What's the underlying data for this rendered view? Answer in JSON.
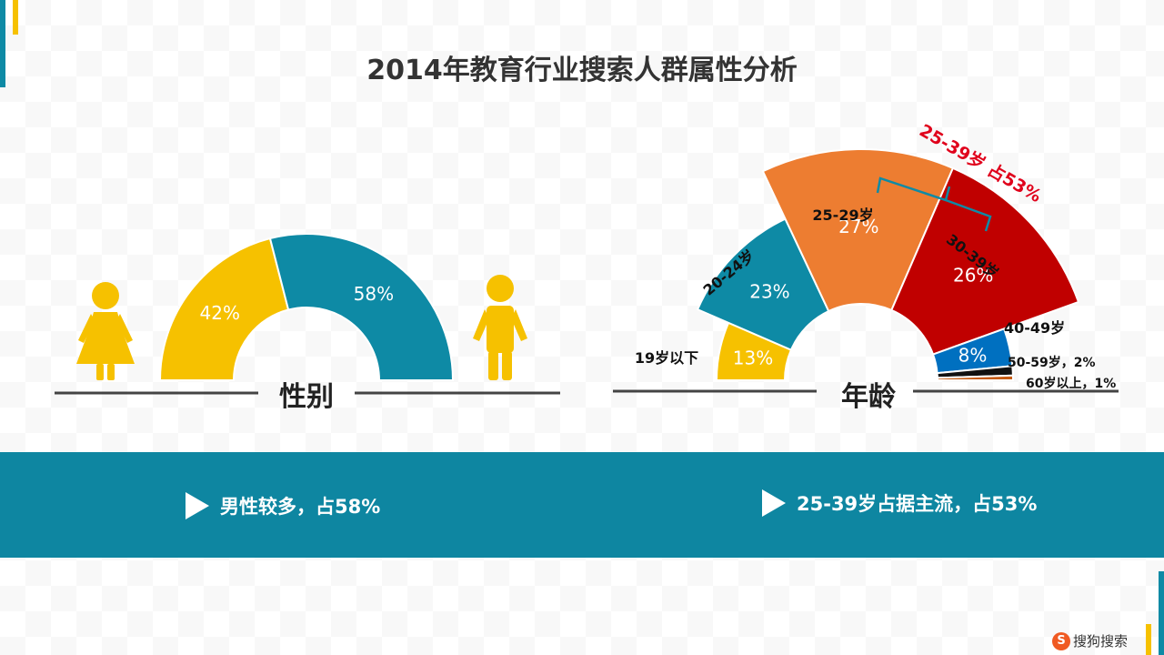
{
  "title": "2014年教育行业搜索人群属性分析",
  "colors": {
    "teal": "#0e8aa5",
    "gold": "#f6c100",
    "orange": "#ed7d31",
    "red": "#c00000",
    "blue": "#0070c0",
    "black": "#111111",
    "brown": "#c55a11",
    "highlight": "#e0001b"
  },
  "chart_data": [
    {
      "type": "pie",
      "shape": "half-donut",
      "title": "性别",
      "series": [
        {
          "label": "42%",
          "value": 42,
          "color": "#f6c100",
          "icon": "female-icon"
        },
        {
          "label": "58%",
          "value": 58,
          "color": "#0e8aa5",
          "icon": "male-icon"
        }
      ]
    },
    {
      "type": "pie",
      "shape": "half-donut",
      "title": "年龄",
      "series": [
        {
          "name": "19岁以下",
          "label": "13%",
          "value": 13,
          "color": "#f6c100"
        },
        {
          "name": "20-24岁",
          "label": "23%",
          "value": 23,
          "color": "#0e8aa5"
        },
        {
          "name": "25-29岁",
          "label": "27%",
          "value": 27,
          "color": "#ed7d31"
        },
        {
          "name": "30-39岁",
          "label": "26%",
          "value": 26,
          "color": "#c00000"
        },
        {
          "name": "40-49岁",
          "label": "8%",
          "value": 8,
          "color": "#0070c0"
        },
        {
          "name": "50-59岁，2%",
          "label": "",
          "value": 2,
          "color": "#111111"
        },
        {
          "name": "60岁以上，1%",
          "label": "",
          "value": 1,
          "color": "#c55a11"
        }
      ],
      "annotation": "25-39岁 占53%"
    }
  ],
  "notes": {
    "gender": "男性较多，占58%",
    "age": "25-39岁占据主流，占53%"
  },
  "brand": {
    "logo_letter": "S",
    "text": "搜狗搜索"
  }
}
